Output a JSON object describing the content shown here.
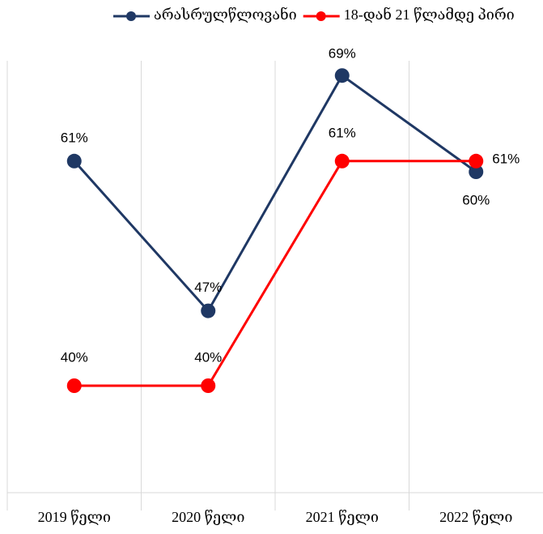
{
  "chart_data": {
    "type": "line",
    "categories": [
      "2019 წელი",
      "2020 წელი",
      "2021 წელი",
      "2022 წელი"
    ],
    "series": [
      {
        "name": "არასრულწლოვანი",
        "color": "#1f3864",
        "values": [
          61,
          47,
          69,
          60
        ],
        "value_labels": [
          "61%",
          "47%",
          "69%",
          "60%"
        ]
      },
      {
        "name": "18-დან 21 წლამდე პირი",
        "color": "#ff0000",
        "values": [
          40,
          40,
          61,
          61
        ],
        "value_labels": [
          "40%",
          "40%",
          "61%",
          "61%"
        ]
      }
    ],
    "ylim": [
      30,
      70
    ],
    "grid": true,
    "legend": "top"
  }
}
